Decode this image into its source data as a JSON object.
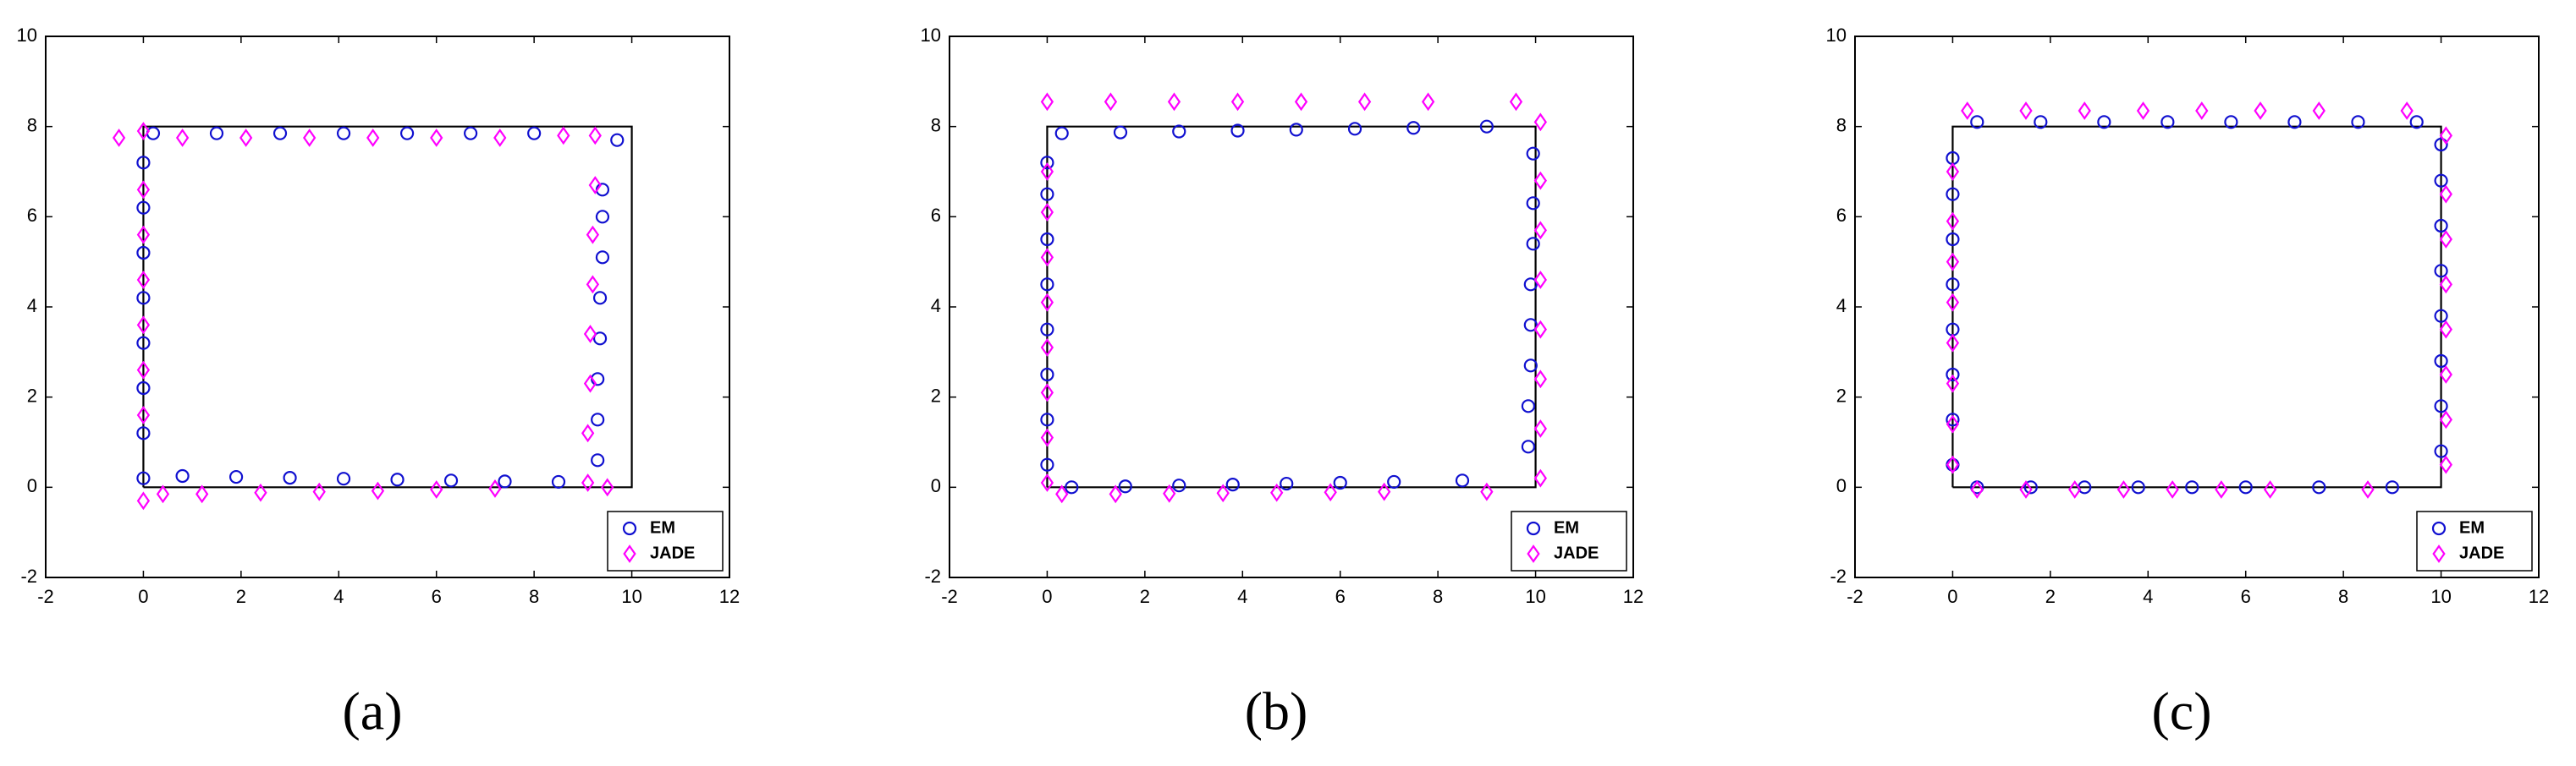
{
  "chart_data": [
    {
      "type": "scatter",
      "caption": "(a)",
      "xlim": [
        -2,
        12
      ],
      "ylim": [
        -2,
        10
      ],
      "xticks": [
        -2,
        0,
        2,
        4,
        6,
        8,
        10,
        12
      ],
      "yticks": [
        -2,
        0,
        2,
        4,
        6,
        8,
        10
      ],
      "legend": "lower right",
      "box": true,
      "outline": {
        "color": "#000000",
        "x": [
          0,
          10,
          10,
          0,
          0
        ],
        "y": [
          0,
          0,
          8,
          8,
          0
        ]
      },
      "series": [
        {
          "name": "EM",
          "color": "#1010d0",
          "marker": "circle",
          "x": [
            0,
            0,
            0,
            0,
            0,
            0,
            0,
            0,
            0.2,
            1.5,
            2.8,
            4.1,
            5.4,
            6.7,
            8.0,
            9.7,
            9.3,
            9.3,
            9.3,
            9.35,
            9.35,
            9.4,
            9.4,
            9.4,
            0.8,
            1.9,
            3.0,
            4.1,
            5.2,
            6.3,
            7.4,
            8.5
          ],
          "values": [
            0.2,
            1.2,
            2.2,
            3.2,
            4.2,
            5.2,
            6.2,
            7.2,
            7.85,
            7.85,
            7.85,
            7.85,
            7.85,
            7.85,
            7.85,
            7.7,
            0.6,
            1.5,
            2.4,
            3.3,
            4.2,
            5.1,
            6.0,
            6.6,
            0.25,
            0.23,
            0.21,
            0.19,
            0.17,
            0.15,
            0.13,
            0.12
          ]
        },
        {
          "name": "JADE",
          "color": "#ff00ff",
          "marker": "diamond",
          "x": [
            0,
            0,
            0,
            0,
            0,
            0,
            0,
            0,
            -0.5,
            0.8,
            2.1,
            3.4,
            4.7,
            6.0,
            7.3,
            8.6,
            9.1,
            9.1,
            9.15,
            9.15,
            9.2,
            9.2,
            9.25,
            9.25,
            0.4,
            1.2,
            2.4,
            3.6,
            4.8,
            6.0,
            7.2,
            9.5
          ],
          "values": [
            -0.3,
            1.6,
            2.6,
            3.6,
            4.6,
            5.6,
            6.6,
            7.9,
            7.75,
            7.75,
            7.75,
            7.75,
            7.75,
            7.75,
            7.75,
            7.8,
            0.1,
            1.2,
            2.3,
            3.4,
            4.5,
            5.6,
            6.7,
            7.8,
            -0.15,
            -0.15,
            -0.12,
            -0.1,
            -0.08,
            -0.05,
            -0.03,
            0
          ]
        }
      ]
    },
    {
      "type": "scatter",
      "caption": "(b)",
      "xlim": [
        -2,
        12
      ],
      "ylim": [
        -2,
        10
      ],
      "xticks": [
        -2,
        0,
        2,
        4,
        6,
        8,
        10,
        12
      ],
      "yticks": [
        -2,
        0,
        2,
        4,
        6,
        8,
        10
      ],
      "legend": "lower right",
      "box": true,
      "outline": {
        "color": "#000000",
        "x": [
          0,
          10,
          10,
          0,
          0
        ],
        "y": [
          0,
          0,
          8,
          8,
          0
        ]
      },
      "series": [
        {
          "name": "EM",
          "color": "#1010d0",
          "marker": "circle",
          "x": [
            0,
            0,
            0,
            0,
            0,
            0,
            0,
            0,
            0.3,
            1.5,
            2.7,
            3.9,
            5.1,
            6.3,
            7.5,
            9.0,
            9.85,
            9.85,
            9.9,
            9.9,
            9.9,
            9.95,
            9.95,
            9.95,
            0.5,
            1.6,
            2.7,
            3.8,
            4.9,
            6.0,
            7.1,
            8.5
          ],
          "values": [
            0.5,
            1.5,
            2.5,
            3.5,
            4.5,
            5.5,
            6.5,
            7.2,
            7.85,
            7.87,
            7.89,
            7.91,
            7.93,
            7.95,
            7.97,
            8.0,
            0.9,
            1.8,
            2.7,
            3.6,
            4.5,
            5.4,
            6.3,
            7.4,
            0.0,
            0.02,
            0.04,
            0.06,
            0.08,
            0.1,
            0.12,
            0.15
          ]
        },
        {
          "name": "JADE",
          "color": "#ff00ff",
          "marker": "diamond",
          "x": [
            0,
            0,
            0,
            0,
            0,
            0,
            0,
            0,
            0,
            1.3,
            2.6,
            3.9,
            5.2,
            6.5,
            7.8,
            9.6,
            10.1,
            10.1,
            10.1,
            10.1,
            10.1,
            10.1,
            10.1,
            10.1,
            0.3,
            1.4,
            2.5,
            3.6,
            4.7,
            5.8,
            6.9,
            9.0
          ],
          "values": [
            0.1,
            1.1,
            2.1,
            3.1,
            4.1,
            5.1,
            6.1,
            7.0,
            8.55,
            8.55,
            8.55,
            8.55,
            8.55,
            8.55,
            8.55,
            8.55,
            0.2,
            1.3,
            2.4,
            3.5,
            4.6,
            5.7,
            6.8,
            8.1,
            -0.15,
            -0.15,
            -0.14,
            -0.13,
            -0.12,
            -0.11,
            -0.1,
            -0.1
          ]
        }
      ]
    },
    {
      "type": "scatter",
      "caption": "(c)",
      "xlim": [
        -2,
        12
      ],
      "ylim": [
        -2,
        10
      ],
      "xticks": [
        -2,
        0,
        2,
        4,
        6,
        8,
        10,
        12
      ],
      "yticks": [
        -2,
        0,
        2,
        4,
        6,
        8,
        10
      ],
      "legend": "lower right",
      "box": true,
      "outline": {
        "color": "#000000",
        "x": [
          0,
          10,
          10,
          0,
          0
        ],
        "y": [
          0,
          0,
          8,
          8,
          0
        ]
      },
      "series": [
        {
          "name": "EM",
          "color": "#1010d0",
          "marker": "circle",
          "x": [
            0,
            0,
            0,
            0,
            0,
            0,
            0,
            0,
            0.5,
            1.8,
            3.1,
            4.4,
            5.7,
            7.0,
            8.3,
            9.5,
            10,
            10,
            10,
            10,
            10,
            10,
            10,
            10,
            0.5,
            1.6,
            2.7,
            3.8,
            4.9,
            6.0,
            7.5,
            9.0
          ],
          "values": [
            0.5,
            1.5,
            2.5,
            3.5,
            4.5,
            5.5,
            6.5,
            7.3,
            8.1,
            8.1,
            8.1,
            8.1,
            8.1,
            8.1,
            8.1,
            8.1,
            0.8,
            1.8,
            2.8,
            3.8,
            4.8,
            5.8,
            6.8,
            7.6,
            0,
            0,
            0,
            0,
            0,
            0,
            0,
            0
          ]
        },
        {
          "name": "JADE",
          "color": "#ff00ff",
          "marker": "diamond",
          "x": [
            0,
            0,
            0,
            0,
            0,
            0,
            0,
            0,
            0.3,
            1.5,
            2.7,
            3.9,
            5.1,
            6.3,
            7.5,
            9.3,
            10.1,
            10.1,
            10.1,
            10.1,
            10.1,
            10.1,
            10.1,
            10.1,
            0.5,
            1.5,
            2.5,
            3.5,
            4.5,
            5.5,
            6.5,
            8.5
          ],
          "values": [
            0.5,
            1.4,
            2.3,
            3.2,
            4.1,
            5.0,
            5.9,
            7.0,
            8.35,
            8.35,
            8.35,
            8.35,
            8.35,
            8.35,
            8.35,
            8.35,
            0.5,
            1.5,
            2.5,
            3.5,
            4.5,
            5.5,
            6.5,
            7.8,
            -0.05,
            -0.05,
            -0.05,
            -0.05,
            -0.05,
            -0.05,
            -0.05,
            -0.05
          ]
        }
      ]
    }
  ]
}
